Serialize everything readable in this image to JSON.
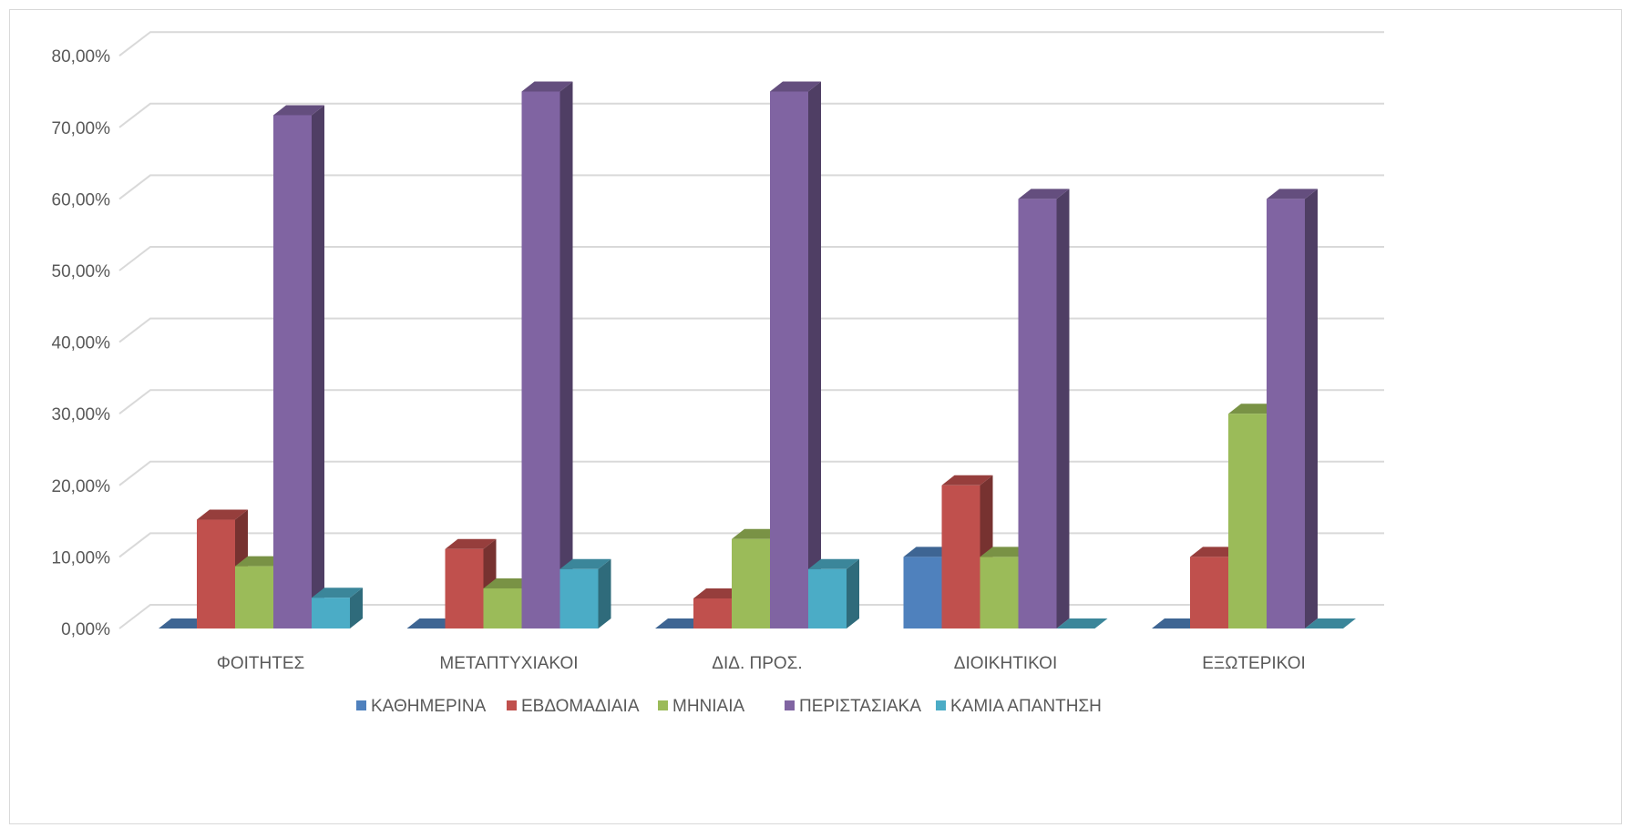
{
  "chart_data": {
    "type": "bar",
    "variant": "3d-clustered-column",
    "title": "",
    "xlabel": "",
    "ylabel": "",
    "categories": [
      "ΦΟΙΤΗΤΕΣ",
      "ΜΕΤΑΠΤΥΧΙΑΚΟΙ",
      "ΔΙΔ. ΠΡΟΣ.",
      "ΔΙΟΙΚΗΤΙΚΟΙ",
      "ΕΞΩΤΕΡΙΚΟΙ"
    ],
    "series": [
      {
        "name": "ΚΑΘΗΜΕΡΙΝΑ",
        "color": "#4f81bd",
        "values": [
          0,
          0,
          0,
          10,
          0
        ]
      },
      {
        "name": "ΕΒΔΟΜΑΔΙΑΙΑ",
        "color": "#c0504d",
        "values": [
          15.2,
          11.1,
          4.2,
          20,
          10
        ]
      },
      {
        "name": "ΜΗΝΙΑΙΑ",
        "color": "#9bbb59",
        "values": [
          8.7,
          5.6,
          12.5,
          10,
          30
        ]
      },
      {
        "name": "ΠΕΡΙΣΤΑΣΙΑΚΑ",
        "color": "#8064a2",
        "values": [
          71.7,
          75,
          75,
          60,
          60
        ]
      },
      {
        "name": "ΚΑΜΙΑ ΑΠΑΝΤΗΣΗ",
        "color": "#4bacc6",
        "values": [
          4.3,
          8.3,
          8.3,
          0,
          0
        ]
      }
    ],
    "ylim": [
      0,
      80
    ],
    "yticks": [
      "0,00%",
      "10,00%",
      "20,00%",
      "30,00%",
      "40,00%",
      "50,00%",
      "60,00%",
      "70,00%",
      "80,00%"
    ],
    "grid": true,
    "legend_position": "bottom"
  }
}
